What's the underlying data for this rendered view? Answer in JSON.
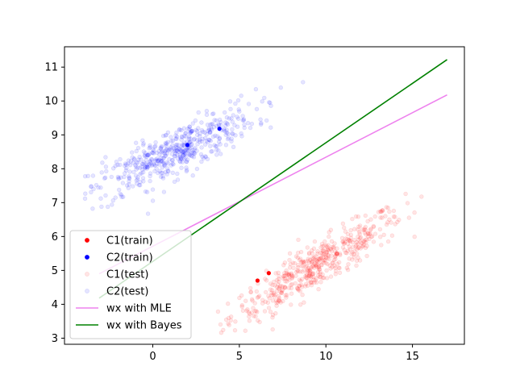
{
  "chart_data": {
    "type": "scatter",
    "title": "",
    "xlabel": "",
    "ylabel": "",
    "xlim": [
      -5.1,
      18.0
    ],
    "ylim": [
      2.82,
      11.6
    ],
    "xticks": [
      "0",
      "5",
      "10",
      "15"
    ],
    "xtick_values": [
      0,
      5,
      10,
      15
    ],
    "yticks": [
      "3",
      "4",
      "5",
      "6",
      "7",
      "8",
      "9",
      "10",
      "11"
    ],
    "ytick_values": [
      3,
      4,
      5,
      6,
      7,
      8,
      9,
      10,
      11
    ],
    "grid": false,
    "legend_position": "lower-left",
    "series": [
      {
        "name": "C1(train)",
        "kind": "points",
        "color": "#ff0000",
        "opacity": 1,
        "x": [
          6.05,
          6.7
        ],
        "y": [
          4.7,
          4.92
        ]
      },
      {
        "name": "C2(train)",
        "kind": "points",
        "color": "#0000ff",
        "opacity": 1,
        "x": [
          2.0,
          3.85
        ],
        "y": [
          8.7,
          9.18
        ]
      },
      {
        "name": "C1(test)",
        "kind": "cloud",
        "color": "#ff0000",
        "opacity": 0.1,
        "center": [
          9.5,
          5.15
        ],
        "std_x": 2.5,
        "slope": 0.3,
        "std_y": 0.33,
        "count": 500,
        "x_range": [
          3.0,
          15.6
        ],
        "y_range": [
          3.1,
          7.3
        ]
      },
      {
        "name": "C2(test)",
        "kind": "cloud",
        "color": "#0000ff",
        "opacity": 0.1,
        "center": [
          1.1,
          8.45
        ],
        "std_x": 2.4,
        "slope": 0.24,
        "std_y": 0.36,
        "count": 500,
        "x_range": [
          -4.0,
          9.5
        ],
        "y_range": [
          6.5,
          10.7
        ]
      },
      {
        "name": "wx with MLE",
        "kind": "line",
        "color": "#ee82ee",
        "x": [
          -3.1,
          17.0
        ],
        "y": [
          4.9,
          10.18
        ]
      },
      {
        "name": "wx with Bayes",
        "kind": "line",
        "color": "#008000",
        "x": [
          -3.1,
          17.0
        ],
        "y": [
          4.18,
          11.22
        ]
      }
    ]
  }
}
